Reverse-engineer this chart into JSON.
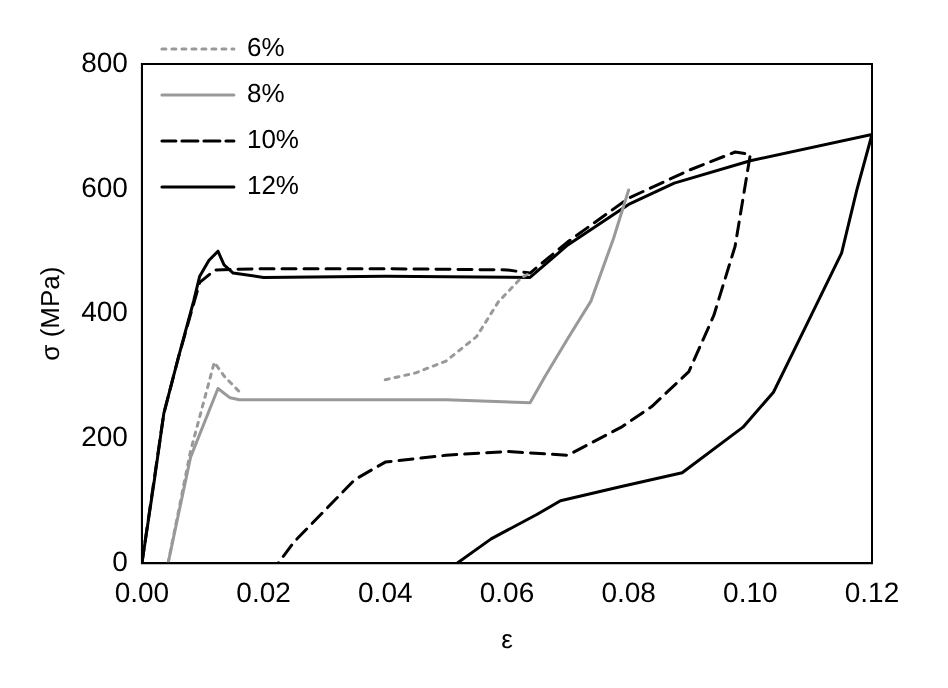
{
  "chart_data": {
    "type": "line",
    "xlabel": "ε",
    "ylabel": "σ (MPa)",
    "xlim": [
      0,
      0.12
    ],
    "ylim": [
      0,
      800
    ],
    "xticks": [
      {
        "value": 0,
        "label": "0.00"
      },
      {
        "value": 0.02,
        "label": "0.02"
      },
      {
        "value": 0.04,
        "label": "0.04"
      },
      {
        "value": 0.06,
        "label": "0.06"
      },
      {
        "value": 0.08,
        "label": "0.08"
      },
      {
        "value": 0.1,
        "label": "0.10"
      },
      {
        "value": 0.12,
        "label": "0.12"
      }
    ],
    "yticks": [
      0,
      200,
      400,
      600,
      800
    ],
    "grid": false,
    "legend": "top left",
    "marker": "none",
    "series": [
      {
        "name": "6%",
        "color": "#999999",
        "line_style": "dotted",
        "x": [
          0.0043,
          0.008,
          0.0119,
          0.0135,
          0.016,
          0.03,
          0.04,
          0.045,
          0.05,
          0.055,
          0.0586,
          0.0624,
          0.0638
        ],
        "values": [
          0,
          180,
          322,
          300,
          275,
          null,
          294,
          305,
          324,
          363,
          419,
          458,
          465
        ]
      },
      {
        "name": "8%",
        "color": "#999999",
        "line_style": "solid",
        "x": [
          0.0043,
          0.008,
          0.0125,
          0.0145,
          0.016,
          0.03,
          0.05,
          0.0638,
          0.0663,
          0.07,
          0.0738,
          0.0775,
          0.08
        ],
        "values": [
          0,
          170,
          280,
          265,
          262,
          262,
          262,
          257,
          300,
          360,
          420,
          520,
          598
        ]
      },
      {
        "name": "10%",
        "color": "#000000",
        "line_style": "dashed",
        "x": [
          0,
          0.0036,
          0.006,
          0.0095,
          0.012,
          0.02,
          0.04,
          0.06,
          0.0638,
          0.07,
          0.08,
          0.09,
          0.0975,
          0.1,
          0.0975,
          0.094,
          0.0899,
          0.0838,
          0.0788,
          0.07,
          0.06,
          0.05,
          0.04,
          0.035,
          0.03,
          0.025,
          0.0224
        ],
        "values": [
          0,
          240,
          330,
          450,
          470,
          472,
          472,
          470,
          465,
          515,
          585,
          630,
          659,
          655,
          508,
          397,
          307,
          251,
          218,
          173,
          179,
          173,
          162,
          134,
          84,
          34,
          0
        ]
      },
      {
        "name": "12%",
        "color": "#000000",
        "line_style": "solid",
        "x": [
          0,
          0.002,
          0.0036,
          0.006,
          0.0085,
          0.0095,
          0.011,
          0.0125,
          0.0135,
          0.015,
          0.02,
          0.04,
          0.0638,
          0.07,
          0.08,
          0.0875,
          0.1,
          0.12,
          0.1175,
          0.115,
          0.1094,
          0.1038,
          0.0988,
          0.0888,
          0.0788,
          0.0688,
          0.0649,
          0.0574,
          0.0518
        ],
        "values": [
          0,
          130,
          240,
          330,
          420,
          460,
          485,
          500,
          478,
          465,
          458,
          460,
          458,
          510,
          575,
          609,
          645,
          687,
          598,
          497,
          385,
          274,
          218,
          145,
          123,
          100,
          78,
          39,
          0
        ]
      }
    ]
  }
}
